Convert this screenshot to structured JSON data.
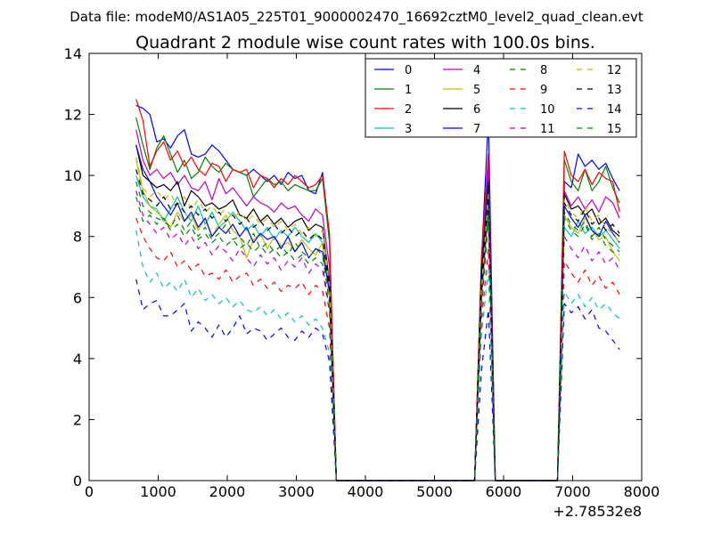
{
  "suptitle": "Data file: modeM0/AS1A05_225T01_9000002470_16692cztM0_level2_quad_clean.evt",
  "chart_data": {
    "type": "line",
    "title": "Quadrant 2 module wise count rates with 100.0s bins.",
    "xlabel": "",
    "ylabel": "",
    "x_offset_label": "+2.78532e8",
    "xlim": [
      0,
      8000
    ],
    "ylim": [
      0,
      14
    ],
    "xticks": [
      0,
      1000,
      2000,
      3000,
      4000,
      5000,
      6000,
      7000,
      8000
    ],
    "yticks": [
      0,
      2,
      4,
      6,
      8,
      10,
      12,
      14
    ],
    "grid": false,
    "legend_position": "top-right",
    "legend_columns": 4,
    "x": [
      680,
      780,
      880,
      980,
      1080,
      1180,
      1280,
      1380,
      1480,
      1580,
      1680,
      1780,
      1880,
      1980,
      2080,
      2180,
      2280,
      2380,
      2480,
      2580,
      2680,
      2780,
      2880,
      2980,
      3080,
      3180,
      3280,
      3380,
      3480,
      3580,
      3680,
      3780,
      3880,
      3980,
      4080,
      4180,
      4280,
      4380,
      4480,
      4580,
      4680,
      4780,
      4880,
      4980,
      5080,
      5180,
      5280,
      5380,
      5480,
      5580,
      5680,
      5780,
      5880,
      5980,
      6080,
      6180,
      6280,
      6380,
      6480,
      6580,
      6680,
      6780,
      6880,
      6980,
      7080,
      7180,
      7280,
      7380,
      7480,
      7580,
      7680
    ],
    "series": [
      {
        "name": "0",
        "color": "#0000ff",
        "style": "solid",
        "values": [
          12.3,
          12.2,
          12.0,
          11.1,
          11.2,
          10.9,
          11.3,
          11.5,
          10.7,
          10.6,
          10.7,
          11.0,
          10.8,
          10.5,
          10.2,
          10.1,
          10.0,
          10.2,
          10.0,
          9.8,
          10.0,
          9.7,
          10.1,
          9.9,
          10.0,
          9.5,
          9.4,
          10.1,
          8.0,
          0.0,
          0,
          0,
          0,
          0,
          0,
          0,
          0,
          0,
          0,
          0,
          0,
          0,
          0,
          0,
          0,
          0,
          0,
          0,
          0,
          0,
          7.2,
          11.9,
          0.0,
          0,
          0,
          0,
          0,
          0,
          0,
          0,
          0,
          0,
          9.8,
          9.6,
          10.7,
          10.3,
          10.5,
          10.2,
          10.4,
          9.9,
          9.5
        ]
      },
      {
        "name": "1",
        "color": "#008000",
        "style": "solid",
        "values": [
          11.9,
          11.0,
          10.2,
          10.9,
          11.3,
          10.7,
          10.1,
          10.5,
          9.9,
          10.1,
          10.6,
          10.3,
          10.1,
          10.4,
          10.2,
          10.1,
          10.0,
          9.3,
          9.6,
          9.9,
          9.7,
          9.8,
          9.5,
          9.7,
          9.6,
          9.5,
          9.5,
          9.9,
          7.8,
          0.0,
          0,
          0,
          0,
          0,
          0,
          0,
          0,
          0,
          0,
          0,
          0,
          0,
          0,
          0,
          0,
          0,
          0,
          0,
          0,
          0,
          7.0,
          10.2,
          0.0,
          0,
          0,
          0,
          0,
          0,
          0,
          0,
          0,
          0,
          10.5,
          9.8,
          9.5,
          10.2,
          9.5,
          9.8,
          10.3,
          9.6,
          9.1
        ]
      },
      {
        "name": "2",
        "color": "#ff0000",
        "style": "solid",
        "values": [
          12.5,
          11.8,
          10.3,
          10.8,
          11.1,
          10.5,
          10.8,
          10.3,
          10.6,
          10.2,
          10.0,
          10.4,
          10.3,
          9.8,
          10.2,
          10.1,
          10.2,
          9.6,
          10.0,
          9.9,
          9.6,
          9.9,
          9.7,
          10.0,
          9.8,
          9.6,
          9.7,
          10.0,
          8.1,
          0.0,
          0,
          0,
          0,
          0,
          0,
          0,
          0,
          0,
          0,
          0,
          0,
          0,
          0,
          0,
          0,
          0,
          0,
          0,
          0,
          0,
          7.3,
          10.7,
          0.0,
          0,
          0,
          0,
          0,
          0,
          0,
          0,
          0,
          0,
          10.8,
          10.0,
          9.8,
          10.2,
          9.7,
          10.1,
          9.9,
          9.8,
          8.8
        ]
      },
      {
        "name": "3",
        "color": "#00bfbf",
        "style": "solid",
        "values": [
          10.0,
          9.3,
          9.0,
          8.9,
          8.5,
          8.9,
          9.3,
          8.8,
          8.5,
          9.0,
          8.4,
          8.8,
          8.3,
          8.5,
          8.8,
          8.5,
          8.2,
          8.4,
          8.0,
          8.3,
          7.9,
          8.2,
          8.0,
          8.3,
          8.0,
          7.8,
          8.1,
          7.8,
          6.2,
          0.0,
          0,
          0,
          0,
          0,
          0,
          0,
          0,
          0,
          0,
          0,
          0,
          0,
          0,
          0,
          0,
          0,
          0,
          0,
          0,
          0,
          6.0,
          9.0,
          0.0,
          0,
          0,
          0,
          0,
          0,
          0,
          0,
          0,
          0,
          8.3,
          8.0,
          8.5,
          8.1,
          8.3,
          8.0,
          8.2,
          7.9,
          7.6
        ]
      },
      {
        "name": "4",
        "color": "#bf00bf",
        "style": "solid",
        "values": [
          11.5,
          10.5,
          10.0,
          10.2,
          9.9,
          10.1,
          9.7,
          10.0,
          9.6,
          9.5,
          9.8,
          9.2,
          9.9,
          9.4,
          9.6,
          9.3,
          9.0,
          9.3,
          9.1,
          9.0,
          8.8,
          9.1,
          8.9,
          9.0,
          8.7,
          8.5,
          8.9,
          8.7,
          7.0,
          0.0,
          0,
          0,
          0,
          0,
          0,
          0,
          0,
          0,
          0,
          0,
          0,
          0,
          0,
          0,
          0,
          0,
          0,
          0,
          0,
          0,
          6.5,
          10.6,
          0.0,
          0,
          0,
          0,
          0,
          0,
          0,
          0,
          0,
          0,
          9.5,
          9.0,
          9.3,
          8.9,
          9.2,
          8.8,
          9.3,
          9.1,
          8.6
        ]
      },
      {
        "name": "5",
        "color": "#bfbf00",
        "style": "solid",
        "values": [
          10.5,
          9.5,
          9.0,
          8.8,
          8.6,
          8.3,
          8.8,
          8.5,
          8.7,
          8.2,
          8.6,
          8.0,
          8.4,
          8.7,
          8.2,
          8.0,
          7.3,
          7.9,
          8.1,
          7.6,
          8.0,
          7.7,
          7.8,
          7.5,
          7.9,
          7.6,
          7.4,
          7.8,
          6.0,
          0.0,
          0,
          0,
          0,
          0,
          0,
          0,
          0,
          0,
          0,
          0,
          0,
          0,
          0,
          0,
          0,
          0,
          0,
          0,
          0,
          0,
          6.0,
          8.8,
          0.0,
          0,
          0,
          0,
          0,
          0,
          0,
          0,
          0,
          0,
          8.7,
          8.3,
          8.1,
          8.6,
          8.2,
          7.9,
          8.0,
          7.5,
          7.2
        ]
      },
      {
        "name": "6",
        "color": "#000000",
        "style": "solid",
        "values": [
          11.0,
          10.0,
          9.8,
          9.6,
          9.7,
          9.5,
          9.8,
          9.0,
          9.5,
          9.3,
          9.0,
          9.1,
          8.9,
          9.0,
          9.2,
          8.7,
          8.6,
          8.9,
          8.5,
          8.7,
          8.4,
          8.6,
          8.3,
          8.5,
          8.6,
          8.2,
          8.4,
          8.3,
          6.5,
          0.0,
          0,
          0,
          0,
          0,
          0,
          0,
          0,
          0,
          0,
          0,
          0,
          0,
          0,
          0,
          0,
          0,
          0,
          0,
          0,
          0,
          6.8,
          9.8,
          0.0,
          0,
          0,
          0,
          0,
          0,
          0,
          0,
          0,
          0,
          9.4,
          8.9,
          9.0,
          8.7,
          8.9,
          8.4,
          8.6,
          8.2,
          8.0
        ]
      },
      {
        "name": "7",
        "color": "#0000ff",
        "style": "solid",
        "values": [
          11.0,
          10.2,
          9.8,
          9.3,
          9.0,
          8.7,
          9.1,
          8.5,
          8.8,
          8.3,
          8.6,
          8.0,
          8.3,
          8.1,
          8.4,
          8.0,
          8.3,
          7.8,
          8.1,
          7.9,
          8.0,
          7.6,
          8.0,
          7.5,
          7.8,
          7.3,
          7.6,
          7.5,
          6.2,
          0.0,
          0,
          0,
          0,
          0,
          0,
          0,
          0,
          0,
          0,
          0,
          0,
          0,
          0,
          0,
          0,
          0,
          0,
          0,
          0,
          0,
          6.5,
          9.5,
          0.0,
          0,
          0,
          0,
          0,
          0,
          0,
          0,
          0,
          0,
          9.0,
          8.6,
          8.3,
          8.7,
          8.2,
          8.0,
          8.5,
          8.1,
          7.8
        ]
      },
      {
        "name": "8",
        "color": "#008000",
        "style": "dashed",
        "values": [
          9.8,
          9.0,
          8.8,
          8.6,
          8.5,
          8.3,
          8.7,
          8.2,
          8.5,
          8.0,
          8.3,
          7.9,
          8.1,
          8.4,
          7.9,
          8.0,
          7.7,
          8.1,
          7.6,
          7.8,
          7.5,
          7.7,
          7.4,
          7.8,
          7.5,
          7.3,
          7.6,
          7.4,
          5.8,
          0.0,
          0,
          0,
          0,
          0,
          0,
          0,
          0,
          0,
          0,
          0,
          0,
          0,
          0,
          0,
          0,
          0,
          0,
          0,
          0,
          0,
          6.0,
          9.0,
          0.0,
          0,
          0,
          0,
          0,
          0,
          0,
          0,
          0,
          0,
          8.8,
          8.4,
          8.2,
          8.5,
          8.0,
          8.3,
          7.9,
          7.7,
          7.5
        ]
      },
      {
        "name": "9",
        "color": "#ff0000",
        "style": "dashed",
        "values": [
          8.6,
          8.0,
          7.6,
          7.3,
          7.2,
          7.5,
          7.0,
          7.2,
          6.9,
          7.1,
          6.7,
          6.8,
          6.6,
          6.9,
          6.5,
          6.7,
          6.8,
          6.4,
          6.6,
          6.3,
          6.5,
          6.2,
          6.4,
          6.3,
          6.5,
          6.1,
          6.4,
          6.2,
          5.0,
          0.0,
          0,
          0,
          0,
          0,
          0,
          0,
          0,
          0,
          0,
          0,
          0,
          0,
          0,
          0,
          0,
          0,
          0,
          0,
          0,
          0,
          5.2,
          7.6,
          0.0,
          0,
          0,
          0,
          0,
          0,
          0,
          0,
          0,
          0,
          7.2,
          6.8,
          6.5,
          6.9,
          6.4,
          6.7,
          6.3,
          6.5,
          6.1
        ]
      },
      {
        "name": "10",
        "color": "#00bfbf",
        "style": "dashed",
        "values": [
          8.2,
          7.0,
          6.5,
          6.8,
          6.3,
          6.5,
          6.2,
          6.6,
          6.0,
          6.3,
          5.9,
          6.1,
          5.8,
          6.0,
          5.7,
          5.9,
          5.6,
          5.5,
          5.7,
          5.4,
          5.6,
          5.3,
          5.5,
          5.2,
          5.4,
          5.1,
          5.3,
          5.0,
          4.2,
          0.0,
          0,
          0,
          0,
          0,
          0,
          0,
          0,
          0,
          0,
          0,
          0,
          0,
          0,
          0,
          0,
          0,
          0,
          0,
          0,
          0,
          4.8,
          6.9,
          0.0,
          0,
          0,
          0,
          0,
          0,
          0,
          0,
          0,
          0,
          6.2,
          5.8,
          6.1,
          5.7,
          6.0,
          5.6,
          5.8,
          5.5,
          5.3
        ]
      },
      {
        "name": "11",
        "color": "#bf00bf",
        "style": "dashed",
        "values": [
          9.5,
          8.7,
          8.4,
          8.1,
          8.3,
          7.9,
          8.1,
          7.7,
          8.0,
          7.6,
          7.8,
          7.4,
          7.7,
          7.5,
          7.2,
          7.6,
          7.3,
          7.0,
          7.4,
          7.1,
          7.3,
          6.9,
          7.2,
          7.0,
          7.3,
          6.8,
          7.1,
          6.9,
          5.5,
          0.0,
          0,
          0,
          0,
          0,
          0,
          0,
          0,
          0,
          0,
          0,
          0,
          0,
          0,
          0,
          0,
          0,
          0,
          0,
          0,
          0,
          5.6,
          8.5,
          0.0,
          0,
          0,
          0,
          0,
          0,
          0,
          0,
          0,
          0,
          8.0,
          7.6,
          7.3,
          7.7,
          7.2,
          7.5,
          7.1,
          7.3,
          6.9
        ]
      },
      {
        "name": "12",
        "color": "#bfbf00",
        "style": "dashed",
        "values": [
          10.6,
          9.6,
          9.3,
          9.5,
          9.2,
          9.4,
          9.0,
          9.3,
          8.9,
          9.2,
          8.8,
          9.0,
          8.7,
          8.9,
          8.6,
          8.8,
          8.5,
          8.7,
          8.4,
          8.6,
          8.3,
          8.5,
          8.2,
          8.4,
          8.1,
          8.3,
          8.0,
          8.2,
          6.4,
          0.0,
          0,
          0,
          0,
          0,
          0,
          0,
          0,
          0,
          0,
          0,
          0,
          0,
          0,
          0,
          0,
          0,
          0,
          0,
          0,
          0,
          6.3,
          9.4,
          0.0,
          0,
          0,
          0,
          0,
          0,
          0,
          0,
          0,
          0,
          9.2,
          8.8,
          8.6,
          9.0,
          8.5,
          8.7,
          8.3,
          8.1,
          7.8
        ]
      },
      {
        "name": "13",
        "color": "#000000",
        "style": "dashed",
        "values": [
          10.2,
          9.4,
          9.2,
          9.0,
          9.3,
          8.9,
          9.1,
          8.8,
          9.0,
          8.7,
          8.9,
          8.6,
          8.8,
          8.5,
          8.7,
          8.4,
          8.6,
          8.3,
          8.5,
          8.2,
          8.4,
          8.1,
          8.3,
          8.0,
          8.2,
          7.9,
          8.1,
          7.9,
          6.3,
          0.0,
          0,
          0,
          0,
          0,
          0,
          0,
          0,
          0,
          0,
          0,
          0,
          0,
          0,
          0,
          0,
          0,
          0,
          0,
          0,
          0,
          6.2,
          9.3,
          0.0,
          0,
          0,
          0,
          0,
          0,
          0,
          0,
          0,
          0,
          9.1,
          8.7,
          8.5,
          8.9,
          8.4,
          8.6,
          8.2,
          8.4,
          8.1
        ]
      },
      {
        "name": "14",
        "color": "#0000ff",
        "style": "dashed",
        "values": [
          6.6,
          5.6,
          5.8,
          5.9,
          5.4,
          5.4,
          5.6,
          5.8,
          4.9,
          5.2,
          5.0,
          4.7,
          5.1,
          4.7,
          5.0,
          5.4,
          4.8,
          5.0,
          4.9,
          4.6,
          4.8,
          5.0,
          4.7,
          4.6,
          4.9,
          4.7,
          5.0,
          4.8,
          3.9,
          0.0,
          0,
          0,
          0,
          0,
          0,
          0,
          0,
          0,
          0,
          0,
          0,
          0,
          0,
          0,
          0,
          0,
          0,
          0,
          0,
          0,
          3.6,
          5.6,
          0.0,
          0,
          0,
          0,
          0,
          0,
          0,
          0,
          0,
          0,
          5.8,
          5.5,
          5.7,
          5.3,
          5.6,
          5.0,
          4.9,
          4.6,
          4.3
        ]
      },
      {
        "name": "15",
        "color": "#008000",
        "style": "dashed",
        "values": [
          9.3,
          8.5,
          8.7,
          8.4,
          8.6,
          8.2,
          8.4,
          8.0,
          8.3,
          7.9,
          8.1,
          7.8,
          8.0,
          7.7,
          7.9,
          7.6,
          7.8,
          7.5,
          7.7,
          7.4,
          7.6,
          7.3,
          7.5,
          7.2,
          7.4,
          7.1,
          7.3,
          7.1,
          5.6,
          0.0,
          0,
          0,
          0,
          0,
          0,
          0,
          0,
          0,
          0,
          0,
          0,
          0,
          0,
          0,
          0,
          0,
          0,
          0,
          0,
          0,
          5.8,
          8.8,
          0.0,
          0,
          0,
          0,
          0,
          0,
          0,
          0,
          0,
          0,
          8.6,
          8.2,
          8.0,
          8.4,
          7.9,
          8.1,
          7.7,
          7.5,
          7.4
        ]
      }
    ]
  }
}
